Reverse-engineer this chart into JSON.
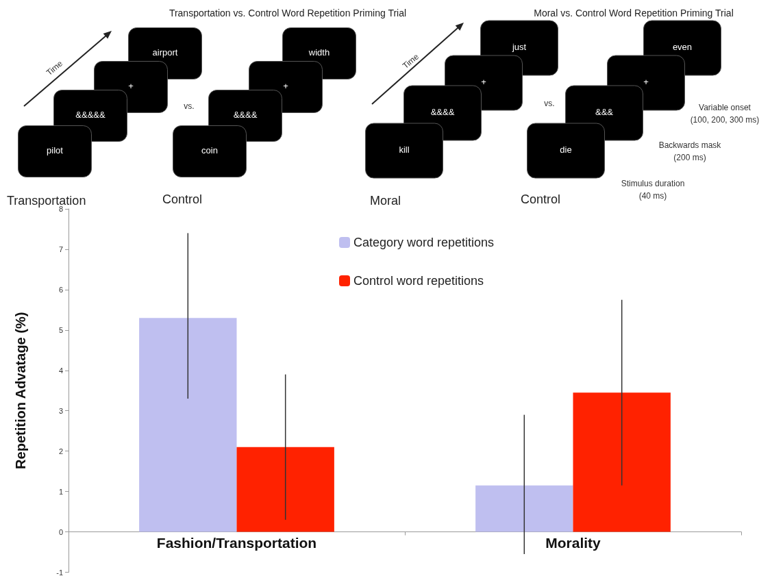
{
  "chart_data": {
    "type": "bar",
    "ylabel": "Repetition Advatage (%)",
    "categories": [
      "Fashion/Transportation",
      "Morality"
    ],
    "series": [
      {
        "name": "Category word repetitions",
        "color": "#bfbff0",
        "values": [
          5.3,
          1.15
        ],
        "errors": [
          [
            3.3,
            7.4
          ],
          [
            -0.55,
            2.9
          ]
        ]
      },
      {
        "name": "Control word repetitions",
        "color": "#ff2200",
        "values": [
          2.1,
          3.45
        ],
        "errors": [
          [
            0.3,
            3.9
          ],
          [
            1.15,
            5.75
          ]
        ]
      }
    ],
    "ylim": [
      -1,
      8
    ],
    "yticks": [
      -1,
      0,
      1,
      2,
      3,
      4,
      5,
      6,
      7,
      8
    ],
    "legend": "top",
    "annotations": [
      "Transportation vs. Control Word Repetition Priming Trial",
      "Time",
      "airport",
      "+",
      "&&&&&",
      "pilot",
      "vs.",
      "width",
      "+",
      "&&&&",
      "coin",
      "Transportation",
      "Control",
      "Moral vs. Control Word Repetition Priming Trial",
      "Time",
      "just",
      "+",
      "&&&&",
      "kill",
      "vs.",
      "even",
      "+",
      "&&&",
      "die",
      "Moral",
      "Control",
      "Variable onset",
      "(100, 200, 300 ms)",
      "Backwards mask",
      "(200 ms)",
      "Stimulus duration",
      "(40 ms)"
    ]
  }
}
